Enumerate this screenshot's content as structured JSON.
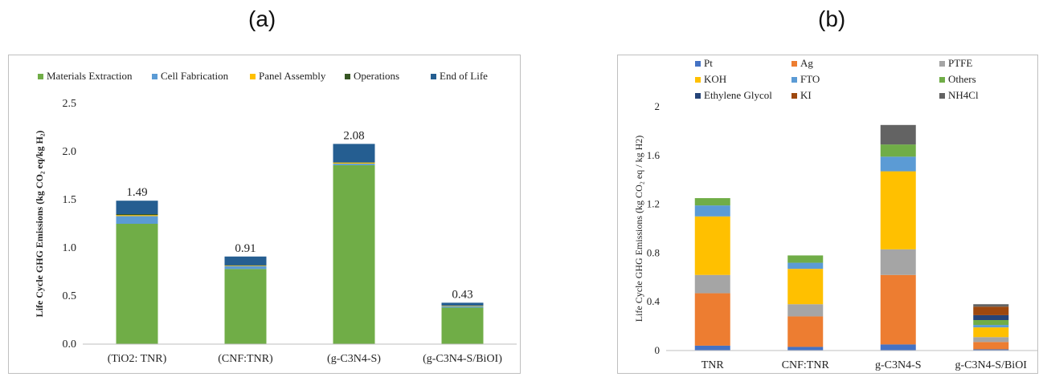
{
  "panels": {
    "a_label": "(a)",
    "b_label": "(b)"
  },
  "chart_data": [
    {
      "type": "bar",
      "stacked": true,
      "ylabel": "Life Cycle GHG Emissions (kg CO₂ eq/kg H₂)",
      "ylim": [
        0,
        2.5
      ],
      "yticks": [
        "0.0",
        "0.5",
        "1.0",
        "1.5",
        "2.0",
        "2.5"
      ],
      "categories": [
        "(TiO2: TNR)",
        "(CNF:TNR)",
        "(g-C3N4-S)",
        "(g-C3N4-S/BiOI)"
      ],
      "totals_labels": [
        "1.49",
        "0.91",
        "2.08",
        "0.43"
      ],
      "legend_position": "top",
      "grid": false,
      "series": [
        {
          "name": "Materials Extraction",
          "color": "#70ad47",
          "values": [
            1.25,
            0.78,
            1.86,
            0.38
          ]
        },
        {
          "name": "Cell Fabrication",
          "color": "#5b9bd5",
          "values": [
            0.08,
            0.03,
            0.015,
            0.015
          ]
        },
        {
          "name": "Panel Assembly",
          "color": "#ffc000",
          "values": [
            0.01,
            0.005,
            0.01,
            0.005
          ]
        },
        {
          "name": "Operations",
          "color": "#375623",
          "values": [
            0.01,
            0.005,
            0.005,
            0.0
          ]
        },
        {
          "name": "End of Life",
          "color": "#255e91",
          "values": [
            0.14,
            0.09,
            0.19,
            0.03
          ]
        }
      ]
    },
    {
      "type": "bar",
      "stacked": true,
      "ylabel": "Life Cycle GHG Emissions (kg CO₂ eq / kg H2)",
      "ylim": [
        0,
        2
      ],
      "yticks": [
        "0",
        "0.4",
        "0.8",
        "1.2",
        "1.6",
        "2"
      ],
      "categories": [
        "TNR",
        "CNF:TNR",
        "g-C3N4-S",
        "g-C3N4-S/BiOI"
      ],
      "legend_position": "top",
      "grid": false,
      "series": [
        {
          "name": "Pt",
          "color": "#4472c4",
          "values": [
            0.04,
            0.03,
            0.05,
            0.01
          ]
        },
        {
          "name": "Ag",
          "color": "#ed7d31",
          "values": [
            0.43,
            0.25,
            0.57,
            0.06
          ]
        },
        {
          "name": "PTFE",
          "color": "#a5a5a5",
          "values": [
            0.15,
            0.1,
            0.21,
            0.04
          ]
        },
        {
          "name": "KOH",
          "color": "#ffc000",
          "values": [
            0.48,
            0.29,
            0.64,
            0.08
          ]
        },
        {
          "name": "FTO",
          "color": "#5b9bd5",
          "values": [
            0.09,
            0.05,
            0.12,
            0.02
          ]
        },
        {
          "name": "Others",
          "color": "#70ad47",
          "values": [
            0.06,
            0.06,
            0.1,
            0.04
          ]
        },
        {
          "name": "Ethylene Glycol",
          "color": "#264478",
          "values": [
            0.0,
            0.0,
            0.0,
            0.04
          ]
        },
        {
          "name": "KI",
          "color": "#9e480e",
          "values": [
            0.0,
            0.0,
            0.0,
            0.07
          ]
        },
        {
          "name": "NH4Cl",
          "color": "#636363",
          "values": [
            0.0,
            0.0,
            0.16,
            0.02
          ]
        }
      ]
    }
  ]
}
